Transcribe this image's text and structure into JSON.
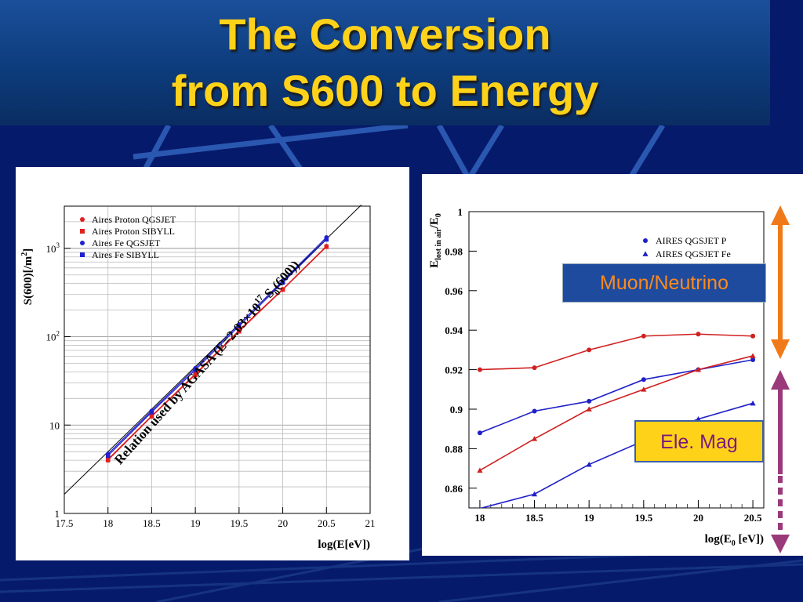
{
  "slide": {
    "title_line1": "The Conversion",
    "title_line2": "from S600 to Energy",
    "colors": {
      "title": "#ffd21a",
      "background": "#061a6b"
    }
  },
  "callouts": {
    "muon_label": "Muon/Neutrino",
    "elemag_label": "Ele. Mag",
    "colors": {
      "muon_arrow": "#f07a1a",
      "elemag_arrow": "#9a3a7a"
    }
  },
  "chart_data": [
    {
      "type": "scatter",
      "xlabel": "log(E[eV])",
      "ylabel": "S(600)[/m",
      "ylabel_sup": "2",
      "ylabel_end": "]",
      "xlim": [
        17.5,
        21
      ],
      "ylim": [
        1,
        3000
      ],
      "yscale": "log",
      "x_ticks": [
        "17.5",
        "18",
        "18.5",
        "19",
        "19.5",
        "20",
        "20.5",
        "21"
      ],
      "y_ticks": [
        {
          "value": 1,
          "base": "1",
          "exp": ""
        },
        {
          "value": 10,
          "base": "10",
          "exp": ""
        },
        {
          "value": 100,
          "base": "10",
          "exp": "2"
        },
        {
          "value": 1000,
          "base": "10",
          "exp": "3"
        }
      ],
      "grid": true,
      "legend_position": "top-left",
      "series": [
        {
          "name": "Aires Proton QGSJET",
          "marker": "circle",
          "color": "#e02020",
          "x": [
            18,
            18.5,
            19,
            19.5,
            20,
            20.5
          ],
          "y": [
            4.1,
            12.7,
            38,
            118,
            345,
            1060
          ]
        },
        {
          "name": "Aires Proton SIBYLL",
          "marker": "square",
          "color": "#e02020",
          "x": [
            18,
            18.5,
            19,
            19.5,
            20,
            20.5
          ],
          "y": [
            4.0,
            12.5,
            37,
            115,
            340,
            1040
          ]
        },
        {
          "name": "Aires Fe QGSJET",
          "marker": "circle",
          "color": "#2020d0",
          "x": [
            18,
            18.5,
            19,
            19.5,
            20,
            20.5
          ],
          "y": [
            4.7,
            14.5,
            44,
            138,
            430,
            1330
          ]
        },
        {
          "name": "Aires Fe SIBYLL",
          "marker": "square",
          "color": "#2020d0",
          "x": [
            18,
            18.5,
            19,
            19.5,
            20,
            20.5
          ],
          "y": [
            4.5,
            14,
            42,
            132,
            410,
            1260
          ]
        }
      ],
      "reference_line": {
        "x": [
          17.5,
          20.9
        ],
        "y": [
          1.65,
          3100
        ],
        "color": "#000000"
      },
      "annotation_main": "Relation used by AGASA (E=2.03×10",
      "annotation_sup": "17",
      "annotation_mid": " S",
      "annotation_sub": "0",
      "annotation_end": "(600))"
    },
    {
      "type": "line",
      "xlabel_main": "log(E",
      "xlabel_sub": "0",
      "xlabel_end": " [eV])",
      "ylabel_main": "E",
      "ylabel_sub": "lost in air",
      "ylabel_end": "/E",
      "ylabel_sub2": "0",
      "xlim": [
        17.9,
        20.6
      ],
      "ylim": [
        0.85,
        1.0
      ],
      "x_ticks": [
        "18",
        "18.5",
        "19",
        "19.5",
        "20",
        "20.5"
      ],
      "y_ticks": [
        "0.86",
        "0.88",
        "0.9",
        "0.92",
        "0.94",
        "0.96",
        "0.98",
        "1"
      ],
      "legend_position": "top-right",
      "series": [
        {
          "name": "AIRES QGSJET P",
          "marker": "circle",
          "color": "#2020c8",
          "x": [
            18,
            18.5,
            19,
            19.5,
            20,
            20.5
          ],
          "y": [
            0.888,
            0.899,
            0.904,
            0.915,
            0.92,
            0.925
          ]
        },
        {
          "name": "AIRES QGSJET Fe",
          "marker": "triangle",
          "color": "#2020c8",
          "x": [
            17.95,
            18.5,
            19,
            19.5,
            20,
            20.5
          ],
          "y": [
            0.849,
            0.857,
            0.872,
            0.884,
            0.895,
            0.903
          ]
        },
        {
          "name": "",
          "marker": "circle",
          "color": "#d02020",
          "x": [
            18,
            18.5,
            19,
            19.5,
            20,
            20.5
          ],
          "y": [
            0.92,
            0.921,
            0.93,
            0.937,
            0.938,
            0.937
          ]
        },
        {
          "name": "",
          "marker": "triangle",
          "color": "#d02020",
          "x": [
            18,
            18.5,
            19,
            19.5,
            20,
            20.5
          ],
          "y": [
            0.869,
            0.885,
            0.9,
            0.91,
            0.92,
            0.927
          ]
        }
      ]
    }
  ]
}
